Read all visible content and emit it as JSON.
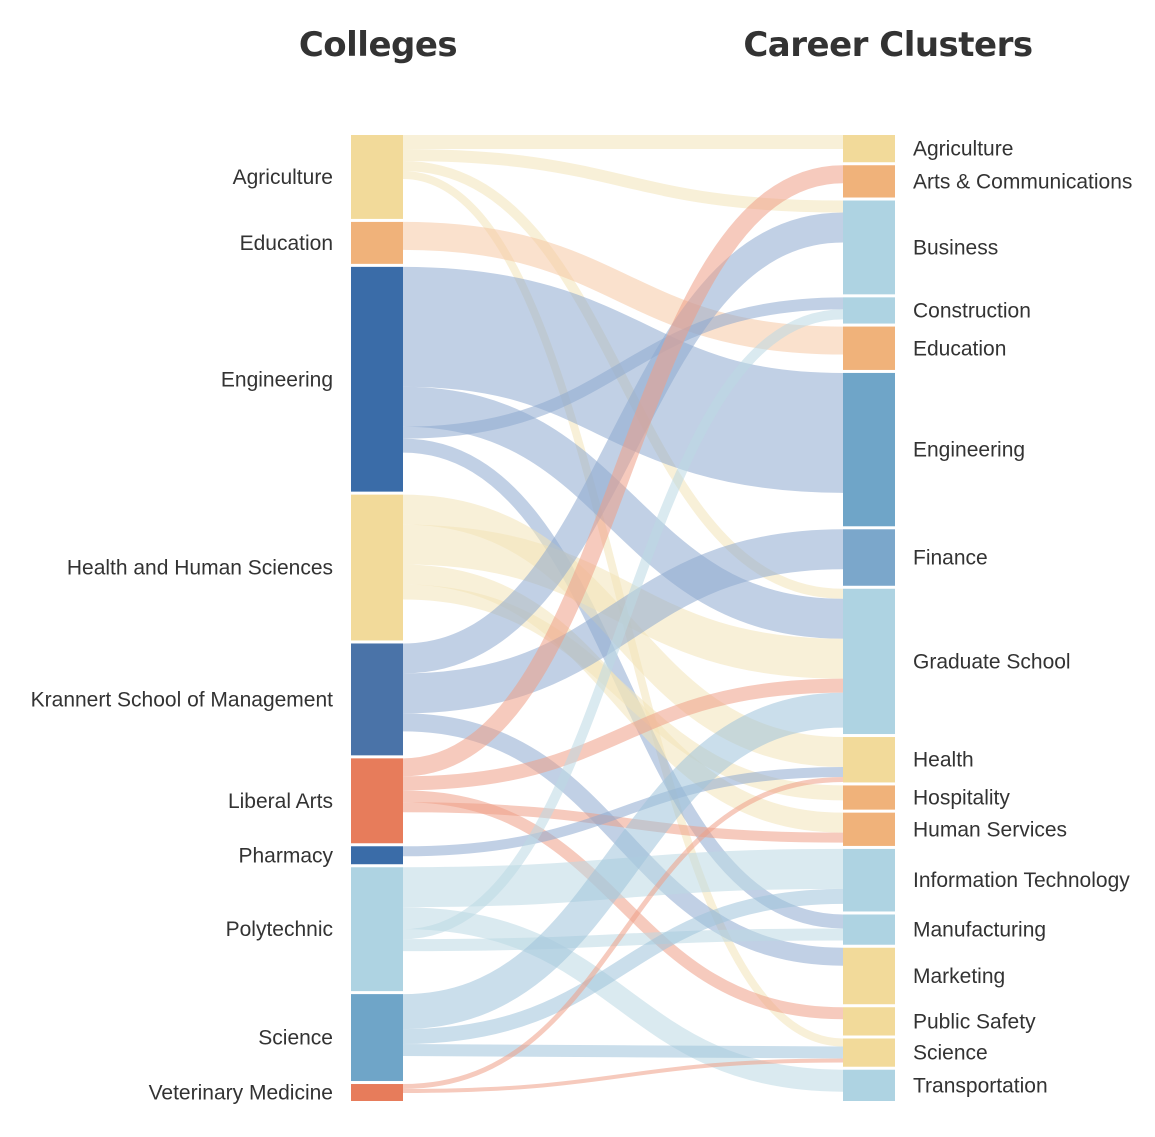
{
  "headers": {
    "left": "Colleges",
    "right": "Career Clusters"
  },
  "colleges": [
    {
      "name": "Agriculture",
      "size": 84,
      "color": "#f2da9a"
    },
    {
      "name": "Education",
      "size": 42,
      "color": "#f0b27a"
    },
    {
      "name": "Engineering",
      "size": 225,
      "color": "#3a6ca8"
    },
    {
      "name": "Health and Human Sciences",
      "size": 146,
      "color": "#f2da9a"
    },
    {
      "name": "Krannert School of Management",
      "size": 112,
      "color": "#4a73a8"
    },
    {
      "name": "Liberal Arts",
      "size": 85,
      "color": "#e77c5b"
    },
    {
      "name": "Pharmacy",
      "size": 18,
      "color": "#3a6ca8"
    },
    {
      "name": "Polytechnic",
      "size": 124,
      "color": "#aed3e2"
    },
    {
      "name": "Science",
      "size": 87,
      "color": "#6fa5c8"
    },
    {
      "name": "Veterinary Medicine",
      "size": 17,
      "color": "#e77c5b"
    }
  ],
  "clusters": [
    {
      "name": "Agriculture",
      "size": 27,
      "color": "#f2da9a"
    },
    {
      "name": "Arts & Communications",
      "size": 32,
      "color": "#f0b27a"
    },
    {
      "name": "Business",
      "size": 93,
      "color": "#aed3e2"
    },
    {
      "name": "Construction",
      "size": 26,
      "color": "#aed3e2"
    },
    {
      "name": "Education",
      "size": 43,
      "color": "#f0b27a"
    },
    {
      "name": "Engineering",
      "size": 152,
      "color": "#6fa5c8"
    },
    {
      "name": "Finance",
      "size": 56,
      "color": "#7ba7cb"
    },
    {
      "name": "Graduate School",
      "size": 144,
      "color": "#aed3e2"
    },
    {
      "name": "Health",
      "size": 45,
      "color": "#f2da9a"
    },
    {
      "name": "Hospitality",
      "size": 24,
      "color": "#f0b27a"
    },
    {
      "name": "Human Services",
      "size": 33,
      "color": "#f0b27a"
    },
    {
      "name": "Information Technology",
      "size": 62,
      "color": "#aed3e2"
    },
    {
      "name": "Manufacturing",
      "size": 30,
      "color": "#aed3e2"
    },
    {
      "name": "Marketing",
      "size": 56,
      "color": "#f2da9a"
    },
    {
      "name": "Public Safety",
      "size": 28,
      "color": "#f2da9a"
    },
    {
      "name": "Science",
      "size": 28,
      "color": "#f2da9a"
    },
    {
      "name": "Transportation",
      "size": 31,
      "color": "#aed3e2"
    }
  ],
  "link_colors": {
    "Agriculture": "#f3e3b8",
    "Education": "#f6c8a4",
    "Engineering": "#8eaad0",
    "Health and Human Sciences": "#f3e3b8",
    "Krannert School of Management": "#8eaad0",
    "Liberal Arts": "#ef9f86",
    "Pharmacy": "#8eaad0",
    "Polytechnic": "#bcd9e4",
    "Science": "#9fc2db",
    "Veterinary Medicine": "#ef9f86"
  },
  "major_flows": [
    {
      "from": "Agriculture",
      "to": "Agriculture",
      "value": 14
    },
    {
      "from": "Agriculture",
      "to": "Business",
      "value": 12
    },
    {
      "from": "Agriculture",
      "to": "Graduate School",
      "value": 10
    },
    {
      "from": "Agriculture",
      "to": "Science",
      "value": 8
    },
    {
      "from": "Education",
      "to": "Education",
      "value": 28
    },
    {
      "from": "Engineering",
      "to": "Engineering",
      "value": 120
    },
    {
      "from": "Engineering",
      "to": "Graduate School",
      "value": 40
    },
    {
      "from": "Engineering",
      "to": "Construction",
      "value": 12
    },
    {
      "from": "Engineering",
      "to": "Manufacturing",
      "value": 14
    },
    {
      "from": "Health and Human Sciences",
      "to": "Health",
      "value": 30
    },
    {
      "from": "Health and Human Sciences",
      "to": "Graduate School",
      "value": 40
    },
    {
      "from": "Health and Human Sciences",
      "to": "Human Services",
      "value": 20
    },
    {
      "from": "Health and Human Sciences",
      "to": "Hospitality",
      "value": 15
    },
    {
      "from": "Krannert School of Management",
      "to": "Business",
      "value": 30
    },
    {
      "from": "Krannert School of Management",
      "to": "Finance",
      "value": 40
    },
    {
      "from": "Krannert School of Management",
      "to": "Marketing",
      "value": 18
    },
    {
      "from": "Liberal Arts",
      "to": "Arts & Communications",
      "value": 18
    },
    {
      "from": "Liberal Arts",
      "to": "Graduate School",
      "value": 14
    },
    {
      "from": "Liberal Arts",
      "to": "Public Safety",
      "value": 12
    },
    {
      "from": "Liberal Arts",
      "to": "Human Services",
      "value": 10
    },
    {
      "from": "Pharmacy",
      "to": "Health",
      "value": 10
    },
    {
      "from": "Polytechnic",
      "to": "Information Technology",
      "value": 40
    },
    {
      "from": "Polytechnic",
      "to": "Transportation",
      "value": 22
    },
    {
      "from": "Polytechnic",
      "to": "Construction",
      "value": 10
    },
    {
      "from": "Polytechnic",
      "to": "Manufacturing",
      "value": 12
    },
    {
      "from": "Science",
      "to": "Graduate School",
      "value": 35
    },
    {
      "from": "Science",
      "to": "Information Technology",
      "value": 15
    },
    {
      "from": "Science",
      "to": "Science",
      "value": 12
    },
    {
      "from": "Veterinary Medicine",
      "to": "Health",
      "value": 5
    },
    {
      "from": "Veterinary Medicine",
      "to": "Science",
      "value": 4
    }
  ]
}
